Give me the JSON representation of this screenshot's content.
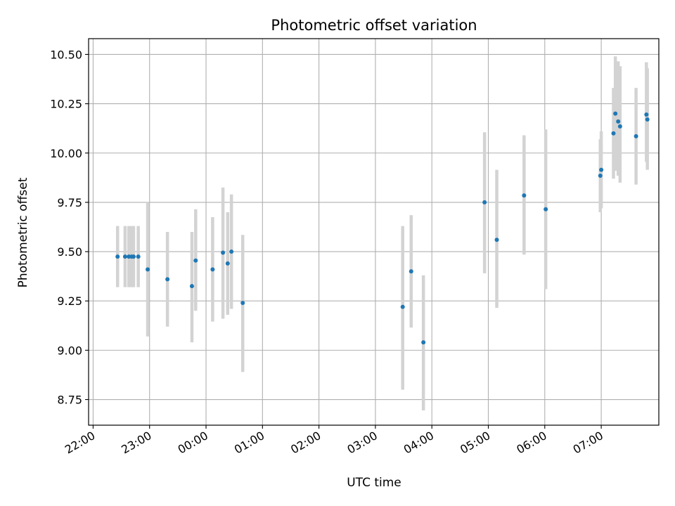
{
  "chart_data": {
    "type": "scatter",
    "title": "Photometric offset variation",
    "xlabel": "UTC time",
    "ylabel": "Photometric offset",
    "x_unit": "UTC hours (time of day; values above 24 continue past midnight)",
    "xlim": [
      21.92,
      32.02
    ],
    "ylim": [
      8.62,
      10.58
    ],
    "x_ticks": [
      {
        "value": 22,
        "label": "22:00"
      },
      {
        "value": 23,
        "label": "23:00"
      },
      {
        "value": 24,
        "label": "00:00"
      },
      {
        "value": 25,
        "label": "01:00"
      },
      {
        "value": 26,
        "label": "02:00"
      },
      {
        "value": 27,
        "label": "03:00"
      },
      {
        "value": 28,
        "label": "04:00"
      },
      {
        "value": 29,
        "label": "05:00"
      },
      {
        "value": 30,
        "label": "06:00"
      },
      {
        "value": 31,
        "label": "07:00"
      }
    ],
    "y_ticks": [
      {
        "value": 8.75,
        "label": "8.75"
      },
      {
        "value": 9.0,
        "label": "9.00"
      },
      {
        "value": 9.25,
        "label": "9.25"
      },
      {
        "value": 9.5,
        "label": "9.50"
      },
      {
        "value": 9.75,
        "label": "9.75"
      },
      {
        "value": 10.0,
        "label": "10.00"
      },
      {
        "value": 10.25,
        "label": "10.25"
      },
      {
        "value": 10.5,
        "label": "10.50"
      }
    ],
    "grid": true,
    "marker_color": "#1f77b4",
    "errorbar_color": "#d3d3d3",
    "points": [
      {
        "t": "22:26",
        "y": 9.475,
        "lo": 9.32,
        "hi": 9.63
      },
      {
        "t": "22:34",
        "y": 9.475,
        "lo": 9.32,
        "hi": 9.63
      },
      {
        "t": "22:38",
        "y": 9.475,
        "lo": 9.32,
        "hi": 9.63
      },
      {
        "t": "22:41",
        "y": 9.475,
        "lo": 9.32,
        "hi": 9.63
      },
      {
        "t": "22:43",
        "y": 9.475,
        "lo": 9.32,
        "hi": 9.63
      },
      {
        "t": "22:48",
        "y": 9.475,
        "lo": 9.32,
        "hi": 9.63
      },
      {
        "t": "22:58",
        "y": 9.41,
        "lo": 9.07,
        "hi": 9.75
      },
      {
        "t": "23:19",
        "y": 9.36,
        "lo": 9.12,
        "hi": 9.6
      },
      {
        "t": "23:45",
        "y": 9.325,
        "lo": 9.04,
        "hi": 9.6
      },
      {
        "t": "23:49",
        "y": 9.455,
        "lo": 9.2,
        "hi": 9.715
      },
      {
        "t": "00:07",
        "y": 9.41,
        "lo": 9.145,
        "hi": 9.675
      },
      {
        "t": "00:18",
        "y": 9.495,
        "lo": 9.16,
        "hi": 9.825
      },
      {
        "t": "00:23",
        "y": 9.44,
        "lo": 9.18,
        "hi": 9.7
      },
      {
        "t": "00:27",
        "y": 9.5,
        "lo": 9.21,
        "hi": 9.79
      },
      {
        "t": "00:39",
        "y": 9.24,
        "lo": 8.89,
        "hi": 9.585
      },
      {
        "t": "03:29",
        "y": 9.22,
        "lo": 8.8,
        "hi": 9.63
      },
      {
        "t": "03:38",
        "y": 9.4,
        "lo": 9.115,
        "hi": 9.685
      },
      {
        "t": "03:51",
        "y": 9.04,
        "lo": 8.695,
        "hi": 9.38
      },
      {
        "t": "04:56",
        "y": 9.75,
        "lo": 9.39,
        "hi": 10.105
      },
      {
        "t": "05:09",
        "y": 9.56,
        "lo": 9.215,
        "hi": 9.915
      },
      {
        "t": "05:38",
        "y": 9.785,
        "lo": 9.485,
        "hi": 10.09
      },
      {
        "t": "06:01",
        "y": 9.715,
        "lo": 9.31,
        "hi": 10.12
      },
      {
        "t": "06:59",
        "y": 9.885,
        "lo": 9.7,
        "hi": 10.07
      },
      {
        "t": "07:00",
        "y": 9.915,
        "lo": 9.72,
        "hi": 10.11
      },
      {
        "t": "07:13",
        "y": 10.1,
        "lo": 9.87,
        "hi": 10.33
      },
      {
        "t": "07:15",
        "y": 10.2,
        "lo": 9.91,
        "hi": 10.49
      },
      {
        "t": "07:18",
        "y": 10.16,
        "lo": 9.885,
        "hi": 10.465
      },
      {
        "t": "07:20",
        "y": 10.135,
        "lo": 9.85,
        "hi": 10.44
      },
      {
        "t": "07:37",
        "y": 10.085,
        "lo": 9.84,
        "hi": 10.33
      },
      {
        "t": "07:48",
        "y": 10.195,
        "lo": 9.955,
        "hi": 10.46
      },
      {
        "t": "07:49",
        "y": 10.17,
        "lo": 9.915,
        "hi": 10.43
      }
    ]
  }
}
